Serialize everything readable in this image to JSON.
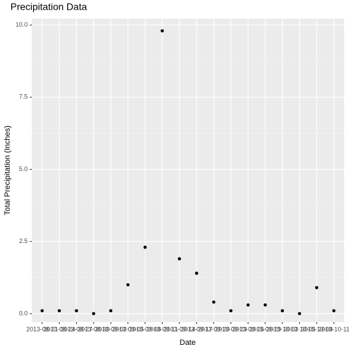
{
  "chart_data": {
    "type": "scatter",
    "title": "Precipitation Data",
    "x_label": "Date",
    "y_label": "Total Precipitation (Inches)",
    "categories": [
      "2013-08-21",
      "2013-08-24",
      "2013-08-27",
      "2013-08-30",
      "2013-09-02",
      "2013-09-05",
      "2013-09-08",
      "2013-09-11",
      "2013-09-14",
      "2013-09-17",
      "2013-09-20",
      "2013-09-23",
      "2013-09-26",
      "2013-09-29",
      "2013-10-02",
      "2013-10-05",
      "2013-10-08",
      "2013-10-11"
    ],
    "values": [
      0.1,
      0.1,
      0.1,
      0,
      0.1,
      1.0,
      2.3,
      9.8,
      1.9,
      1.4,
      0.4,
      0.1,
      0.3,
      0.3,
      0.1,
      0,
      0.9,
      0.1
    ],
    "color": "#000000",
    "ylim": [
      -0.29,
      10.22
    ],
    "yticks": [
      {
        "value": 0,
        "label": "0.0"
      },
      2.5,
      {
        "value": 5,
        "label": "5.0"
      },
      7.5,
      {
        "value": 10,
        "label": "10.0"
      }
    ],
    "grid": true
  }
}
